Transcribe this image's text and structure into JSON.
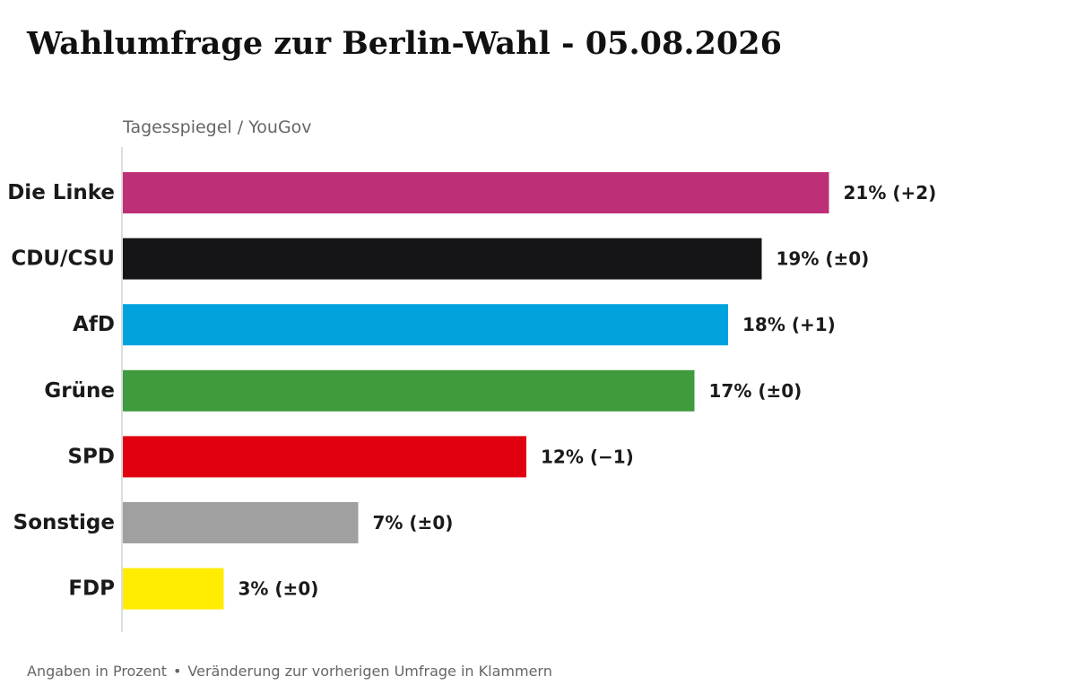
{
  "chart_data": {
    "type": "bar",
    "orientation": "horizontal",
    "title": "Wahlumfrage zur Berlin-Wahl - 05.08.2026",
    "subtitle": "Tagesspiegel / YouGov",
    "categories": [
      "Die Linke",
      "CDU/CSU",
      "AfD",
      "Grüne",
      "SPD",
      "Sonstige",
      "FDP"
    ],
    "values": [
      21,
      19,
      18,
      17,
      12,
      7,
      3
    ],
    "value_labels": [
      "21%",
      "19%",
      "18%",
      "17%",
      "12%",
      "7%",
      "3%"
    ],
    "changes": [
      "(+2)",
      "(±0)",
      "(+1)",
      "(±0)",
      "(−1)",
      "(±0)",
      "(±0)"
    ],
    "colors": [
      "#bd2f76",
      "#151518",
      "#00a3de",
      "#3f9b3d",
      "#e0000f",
      "#a0a0a0",
      "#ffec00"
    ],
    "xlim": [
      0,
      25
    ],
    "grid": false,
    "footnotes": [
      "Angaben in Prozent",
      "Veränderung zur vorherigen Umfrage in Klammern"
    ]
  }
}
